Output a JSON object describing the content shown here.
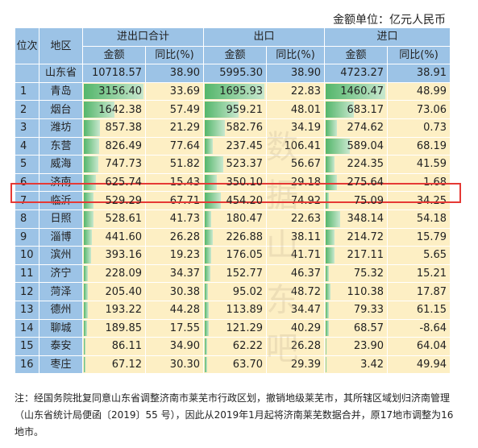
{
  "unit_label": "金额单位：亿元人民币",
  "headers": {
    "rank": "位次",
    "region": "地区",
    "total": "进出口合计",
    "export": "出口",
    "import": "进口",
    "amount": "金额",
    "yoy": "同比(%)"
  },
  "province": {
    "name": "山东省",
    "total_amount": "10718.57",
    "total_yoy": "38.90",
    "export_amount": "5995.30",
    "export_yoy": "38.90",
    "import_amount": "4723.27",
    "import_yoy": "38.91"
  },
  "rows": [
    {
      "rank": "1",
      "region": "青岛",
      "total_amount": "3156.40",
      "total_yoy": "33.69",
      "export_amount": "1695.93",
      "export_yoy": "22.83",
      "import_amount": "1460.47",
      "import_yoy": "48.99"
    },
    {
      "rank": "2",
      "region": "烟台",
      "total_amount": "1642.38",
      "total_yoy": "57.49",
      "export_amount": "959.21",
      "export_yoy": "48.01",
      "import_amount": "683.17",
      "import_yoy": "73.06"
    },
    {
      "rank": "3",
      "region": "潍坊",
      "total_amount": "857.38",
      "total_yoy": "21.29",
      "export_amount": "582.76",
      "export_yoy": "34.19",
      "import_amount": "274.62",
      "import_yoy": "0.73"
    },
    {
      "rank": "4",
      "region": "东营",
      "total_amount": "826.49",
      "total_yoy": "77.64",
      "export_amount": "237.45",
      "export_yoy": "106.41",
      "import_amount": "589.04",
      "import_yoy": "68.19"
    },
    {
      "rank": "5",
      "region": "威海",
      "total_amount": "747.73",
      "total_yoy": "51.82",
      "export_amount": "523.37",
      "export_yoy": "56.67",
      "import_amount": "224.35",
      "import_yoy": "41.59"
    },
    {
      "rank": "6",
      "region": "济南",
      "total_amount": "625.74",
      "total_yoy": "15.43",
      "export_amount": "350.10",
      "export_yoy": "29.18",
      "import_amount": "275.64",
      "import_yoy": "1.68"
    },
    {
      "rank": "7",
      "region": "临沂",
      "total_amount": "529.29",
      "total_yoy": "67.71",
      "export_amount": "454.20",
      "export_yoy": "74.92",
      "import_amount": "75.09",
      "import_yoy": "34.25"
    },
    {
      "rank": "8",
      "region": "日照",
      "total_amount": "528.61",
      "total_yoy": "41.73",
      "export_amount": "180.47",
      "export_yoy": "22.63",
      "import_amount": "348.14",
      "import_yoy": "54.18"
    },
    {
      "rank": "9",
      "region": "淄博",
      "total_amount": "441.60",
      "total_yoy": "26.28",
      "export_amount": "226.88",
      "export_yoy": "38.11",
      "import_amount": "214.72",
      "import_yoy": "15.79"
    },
    {
      "rank": "10",
      "region": "滨州",
      "total_amount": "393.16",
      "total_yoy": "19.23",
      "export_amount": "176.05",
      "export_yoy": "41.71",
      "import_amount": "217.11",
      "import_yoy": "5.65"
    },
    {
      "rank": "11",
      "region": "济宁",
      "total_amount": "228.09",
      "total_yoy": "34.37",
      "export_amount": "152.77",
      "export_yoy": "46.37",
      "import_amount": "75.32",
      "import_yoy": "15.21"
    },
    {
      "rank": "12",
      "region": "菏泽",
      "total_amount": "205.40",
      "total_yoy": "30.38",
      "export_amount": "95.02",
      "export_yoy": "48.72",
      "import_amount": "110.38",
      "import_yoy": "17.87"
    },
    {
      "rank": "13",
      "region": "德州",
      "total_amount": "193.22",
      "total_yoy": "44.28",
      "export_amount": "113.89",
      "export_yoy": "34.47",
      "import_amount": "79.33",
      "import_yoy": "61.15"
    },
    {
      "rank": "14",
      "region": "聊城",
      "total_amount": "189.85",
      "total_yoy": "17.55",
      "export_amount": "121.29",
      "export_yoy": "40.29",
      "import_amount": "68.57",
      "import_yoy": "-8.64"
    },
    {
      "rank": "15",
      "region": "泰安",
      "total_amount": "86.11",
      "total_yoy": "34.90",
      "export_amount": "62.22",
      "export_yoy": "26.28",
      "import_amount": "23.90",
      "import_yoy": "64.04"
    },
    {
      "rank": "16",
      "region": "枣庄",
      "total_amount": "67.12",
      "total_yoy": "30.30",
      "export_amount": "63.70",
      "export_yoy": "29.39",
      "import_amount": "3.42",
      "import_yoy": "49.94"
    }
  ],
  "highlighted_region": "济南",
  "watermark": [
    "数",
    "据",
    "山",
    "东",
    "吧"
  ],
  "note": "注：经国务院批复同意山东省调整济南市莱芜市行政区划，撤销地级莱芜市，其所辖区域划归济南管理（山东省统计局便函〔2019〕55 号），因此从2019年1月起将济南莱芜数据合并，原17地市调整为16地市。",
  "colors": {
    "header_bg": "#9cc3e6",
    "cell_bg": "#fdefc4",
    "bar_green": "#54b66b",
    "highlight_border": "#e53935"
  }
}
